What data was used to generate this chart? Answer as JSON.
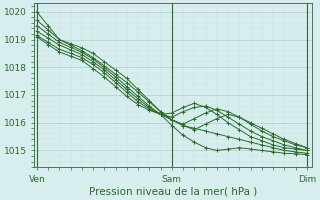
{
  "bg_color": "#d8eeee",
  "grid_color_major": "#b0cccc",
  "grid_color_minor": "#c8e0e0",
  "line_color": "#2d6a2d",
  "xlabel": "Pression niveau de la mer( hPa )",
  "xlabel_fontsize": 7.5,
  "tick_label_color": "#2d6a2d",
  "xtick_labels": [
    "Ven",
    "Sam",
    "Dim"
  ],
  "ylim": [
    1014.4,
    1020.3
  ],
  "yticks": [
    1015,
    1016,
    1017,
    1018,
    1019,
    1020
  ],
  "series": [
    [
      1020.0,
      1019.5,
      1019.0,
      1018.85,
      1018.7,
      1018.5,
      1018.2,
      1017.9,
      1017.6,
      1017.2,
      1016.8,
      1016.4,
      1016.1,
      1015.9,
      1015.8,
      1015.7,
      1015.6,
      1015.5,
      1015.4,
      1015.3,
      1015.2,
      1015.1,
      1015.0,
      1014.95,
      1014.9
    ],
    [
      1019.7,
      1019.35,
      1019.0,
      1018.8,
      1018.6,
      1018.35,
      1018.05,
      1017.75,
      1017.45,
      1017.1,
      1016.75,
      1016.4,
      1016.1,
      1015.9,
      1015.75,
      1015.95,
      1016.15,
      1016.3,
      1016.2,
      1016.0,
      1015.8,
      1015.6,
      1015.4,
      1015.25,
      1015.1
    ],
    [
      1019.5,
      1019.2,
      1018.9,
      1018.72,
      1018.54,
      1018.3,
      1017.98,
      1017.66,
      1017.3,
      1016.95,
      1016.6,
      1016.3,
      1016.1,
      1015.95,
      1016.15,
      1016.35,
      1016.5,
      1016.4,
      1016.2,
      1015.95,
      1015.7,
      1015.5,
      1015.35,
      1015.2,
      1015.1
    ],
    [
      1019.3,
      1019.05,
      1018.8,
      1018.63,
      1018.46,
      1018.2,
      1017.9,
      1017.55,
      1017.2,
      1016.85,
      1016.55,
      1016.3,
      1016.2,
      1016.4,
      1016.55,
      1016.6,
      1016.45,
      1016.2,
      1015.95,
      1015.7,
      1015.5,
      1015.35,
      1015.2,
      1015.1,
      1015.0
    ],
    [
      1019.15,
      1018.9,
      1018.65,
      1018.5,
      1018.35,
      1018.1,
      1017.8,
      1017.45,
      1017.1,
      1016.75,
      1016.5,
      1016.3,
      1016.35,
      1016.55,
      1016.7,
      1016.55,
      1016.3,
      1016.0,
      1015.75,
      1015.5,
      1015.35,
      1015.2,
      1015.1,
      1015.05,
      1015.0
    ],
    [
      1019.1,
      1018.82,
      1018.55,
      1018.4,
      1018.25,
      1017.95,
      1017.65,
      1017.3,
      1016.95,
      1016.65,
      1016.45,
      1016.3,
      1015.9,
      1015.55,
      1015.3,
      1015.1,
      1015.0,
      1015.05,
      1015.1,
      1015.05,
      1015.0,
      1014.95,
      1014.9,
      1014.88,
      1014.85
    ]
  ],
  "n_days": 2,
  "vline_positions": [
    0.0,
    0.5,
    1.0
  ]
}
